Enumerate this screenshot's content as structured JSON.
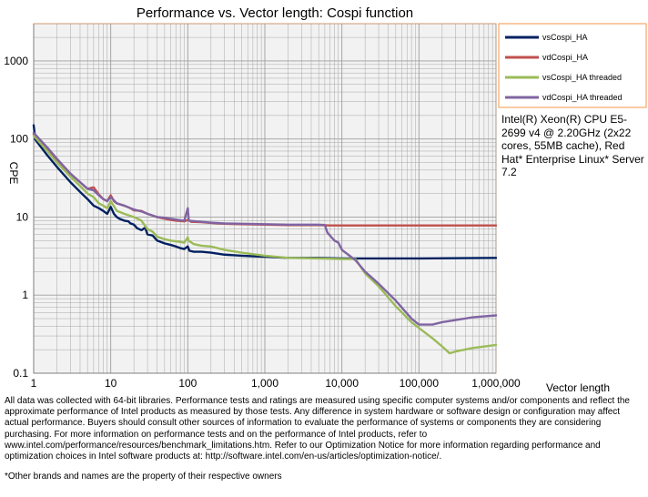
{
  "chart_data": {
    "type": "line",
    "title": "Performance vs. Vector length: Cospi function",
    "xlabel": "Vector length",
    "ylabel": "CPE",
    "x_scale": "log",
    "y_scale": "log",
    "xlim": [
      1,
      1000000
    ],
    "ylim": [
      0.1,
      3000
    ],
    "x_ticks": [
      {
        "value": 1,
        "label": "1"
      },
      {
        "value": 10,
        "label": "10"
      },
      {
        "value": 100,
        "label": "100"
      },
      {
        "value": 1000,
        "label": "1,000"
      },
      {
        "value": 10000,
        "label": "10,000"
      },
      {
        "value": 100000,
        "label": "100,000"
      },
      {
        "value": 1000000,
        "label": "1,000,000"
      }
    ],
    "y_ticks": [
      {
        "value": 0.1,
        "label": "0.1"
      },
      {
        "value": 1,
        "label": "1"
      },
      {
        "value": 10,
        "label": "10"
      },
      {
        "value": 100,
        "label": "100"
      },
      {
        "value": 1000,
        "label": "1000"
      }
    ],
    "grid": true,
    "legend_position": "top-right",
    "series": [
      {
        "name": "vsCospi_HA",
        "color": "#002060",
        "points": [
          [
            1,
            150
          ],
          [
            1.05,
            98
          ],
          [
            1.5,
            62
          ],
          [
            2,
            44
          ],
          [
            3,
            28
          ],
          [
            4,
            21
          ],
          [
            5,
            17
          ],
          [
            6,
            14
          ],
          [
            7,
            13
          ],
          [
            8,
            12
          ],
          [
            9,
            11
          ],
          [
            10,
            13.5
          ],
          [
            11,
            11
          ],
          [
            12,
            10
          ],
          [
            13,
            9.5
          ],
          [
            15,
            9
          ],
          [
            17,
            8.8
          ],
          [
            18,
            8.3
          ],
          [
            20,
            8
          ],
          [
            22,
            7.2
          ],
          [
            25,
            6.8
          ],
          [
            28,
            7.3
          ],
          [
            30,
            6
          ],
          [
            35,
            5.8
          ],
          [
            40,
            5
          ],
          [
            50,
            4.6
          ],
          [
            60,
            4.4
          ],
          [
            70,
            4.2
          ],
          [
            80,
            4
          ],
          [
            90,
            3.9
          ],
          [
            100,
            4.2
          ],
          [
            105,
            3.7
          ],
          [
            120,
            3.6
          ],
          [
            150,
            3.6
          ],
          [
            200,
            3.5
          ],
          [
            300,
            3.3
          ],
          [
            500,
            3.2
          ],
          [
            1000,
            3.1
          ],
          [
            2000,
            3.0
          ],
          [
            5000,
            3.0
          ],
          [
            10000,
            2.95
          ],
          [
            20000,
            2.95
          ],
          [
            100000,
            2.95
          ],
          [
            1000000,
            3.0
          ]
        ]
      },
      {
        "name": "vdCospi_HA",
        "color": "#C0504D",
        "points": [
          [
            1,
            115
          ],
          [
            1.5,
            75
          ],
          [
            2,
            55
          ],
          [
            3,
            36
          ],
          [
            4,
            28
          ],
          [
            5,
            23
          ],
          [
            6,
            24
          ],
          [
            7,
            19.5
          ],
          [
            8,
            17
          ],
          [
            9,
            16
          ],
          [
            10,
            19
          ],
          [
            11,
            16
          ],
          [
            12,
            15
          ],
          [
            15,
            14
          ],
          [
            18,
            13
          ],
          [
            20,
            12.2
          ],
          [
            25,
            12
          ],
          [
            30,
            11
          ],
          [
            40,
            10
          ],
          [
            50,
            9.5
          ],
          [
            60,
            9.2
          ],
          [
            70,
            9
          ],
          [
            80,
            8.9
          ],
          [
            90,
            8.8
          ],
          [
            100,
            9.2
          ],
          [
            110,
            8.7
          ],
          [
            150,
            8.6
          ],
          [
            200,
            8.4
          ],
          [
            300,
            8.2
          ],
          [
            500,
            8.1
          ],
          [
            1000,
            8
          ],
          [
            2000,
            7.9
          ],
          [
            5000,
            7.9
          ],
          [
            7000,
            7.8
          ],
          [
            20000,
            7.8
          ],
          [
            100000,
            7.8
          ],
          [
            1000000,
            7.8
          ]
        ]
      },
      {
        "name": "vsCospi_HA threaded",
        "color": "#9BBB59",
        "points": [
          [
            1,
            110
          ],
          [
            1.5,
            70
          ],
          [
            2,
            50
          ],
          [
            3,
            33
          ],
          [
            4,
            25
          ],
          [
            5,
            20
          ],
          [
            6,
            18
          ],
          [
            7,
            15
          ],
          [
            8,
            14
          ],
          [
            9,
            13
          ],
          [
            10,
            16
          ],
          [
            12,
            12
          ],
          [
            15,
            11
          ],
          [
            20,
            10
          ],
          [
            25,
            9
          ],
          [
            30,
            7
          ],
          [
            35,
            6.5
          ],
          [
            40,
            5.6
          ],
          [
            50,
            5.2
          ],
          [
            60,
            5
          ],
          [
            70,
            4.9
          ],
          [
            80,
            4.8
          ],
          [
            90,
            4.7
          ],
          [
            100,
            5.5
          ],
          [
            102,
            5
          ],
          [
            120,
            4.5
          ],
          [
            150,
            4.3
          ],
          [
            200,
            4.2
          ],
          [
            300,
            3.8
          ],
          [
            500,
            3.5
          ],
          [
            1000,
            3.2
          ],
          [
            2000,
            3.0
          ],
          [
            5000,
            2.95
          ],
          [
            10000,
            2.9
          ],
          [
            15000,
            2.9
          ],
          [
            20000,
            1.9
          ],
          [
            30000,
            1.3
          ],
          [
            50000,
            0.72
          ],
          [
            80000,
            0.45
          ],
          [
            100000,
            0.38
          ],
          [
            150000,
            0.28
          ],
          [
            200000,
            0.22
          ],
          [
            250000,
            0.18
          ],
          [
            300000,
            0.19
          ],
          [
            500000,
            0.21
          ],
          [
            1000000,
            0.23
          ]
        ]
      },
      {
        "name": "vdCospi_HA threaded",
        "color": "#8064A2",
        "points": [
          [
            1,
            120
          ],
          [
            1.5,
            78
          ],
          [
            2,
            56
          ],
          [
            3,
            36
          ],
          [
            4,
            28
          ],
          [
            5,
            23
          ],
          [
            6,
            22
          ],
          [
            7,
            19
          ],
          [
            8,
            17
          ],
          [
            9,
            16
          ],
          [
            10,
            18
          ],
          [
            12,
            15
          ],
          [
            15,
            14
          ],
          [
            18,
            13
          ],
          [
            20,
            12.5
          ],
          [
            25,
            11.8
          ],
          [
            30,
            11
          ],
          [
            40,
            10
          ],
          [
            50,
            9.8
          ],
          [
            60,
            9.5
          ],
          [
            70,
            9.3
          ],
          [
            80,
            9.1
          ],
          [
            90,
            9
          ],
          [
            100,
            13
          ],
          [
            103,
            9
          ],
          [
            150,
            8.7
          ],
          [
            200,
            8.5
          ],
          [
            300,
            8.3
          ],
          [
            500,
            8.2
          ],
          [
            1000,
            8.1
          ],
          [
            2000,
            8
          ],
          [
            5000,
            8
          ],
          [
            6000,
            7.9
          ],
          [
            6500,
            6.3
          ],
          [
            8000,
            5
          ],
          [
            9000,
            4.7
          ],
          [
            10000,
            3.8
          ],
          [
            15000,
            2.8
          ],
          [
            20000,
            2
          ],
          [
            30000,
            1.4
          ],
          [
            50000,
            0.85
          ],
          [
            80000,
            0.5
          ],
          [
            100000,
            0.42
          ],
          [
            150000,
            0.42
          ],
          [
            200000,
            0.45
          ],
          [
            300000,
            0.48
          ],
          [
            500000,
            0.52
          ],
          [
            1000000,
            0.55
          ]
        ]
      }
    ]
  },
  "sysinfo_text": "Intel(R) Xeon(R) CPU E5-2699 v4 @ 2.20GHz (2x22 cores, 55MB cache), Red Hat* Enterprise Linux* Server 7.2",
  "disclaimer_text": "All data was collected with 64-bit libraries. Performance tests and ratings are measured using specific computer systems and/or components and reflect the approximate performance of Intel products as measured by those tests. Any difference in system hardware or software design or configuration may affect actual performance. Buyers should consult other sources of information to evaluate the performance of systems or components they are considering purchasing. For more information on performance tests and on the performance of Intel products, refer to www.intel.com/performance/resources/benchmark_limitations.htm. Refer to our Optimization Notice for more information regarding performance and optimization choices in Intel software products at: http://software.intel.com/en-us/articles/optimization-notice/.",
  "trademark_text": "*Other brands and names are the property of their respective owners",
  "colors": {
    "plot_background": "#F2F2F2",
    "frame": "#F79646",
    "grid": "#9E9E9E"
  }
}
